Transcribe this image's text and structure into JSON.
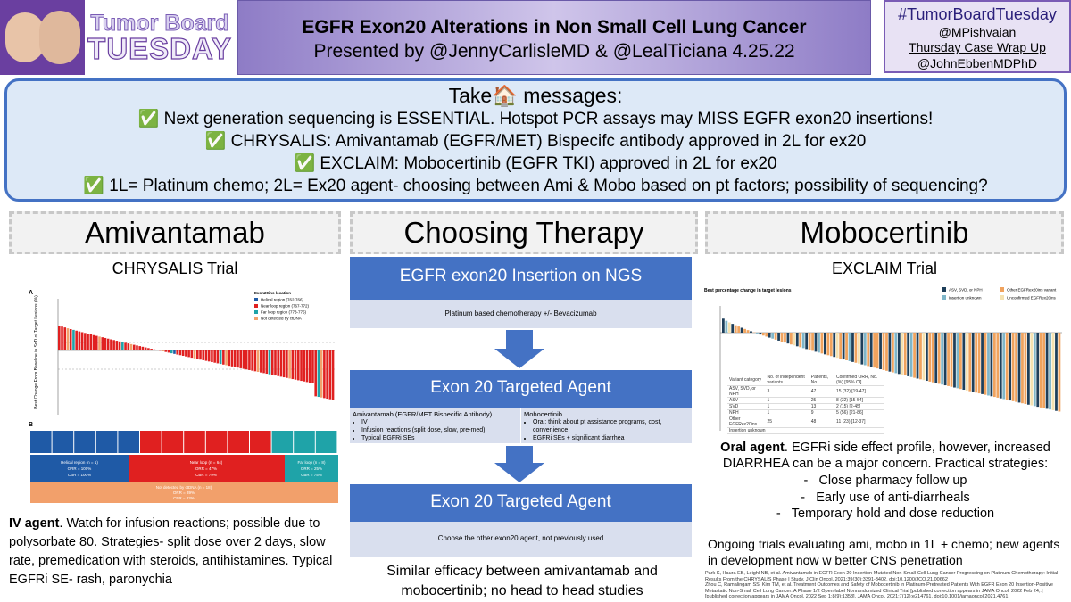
{
  "header": {
    "logo_line1": "Tumor Board",
    "logo_line2": "TUESDAY",
    "title": "EGFR Exon20 Alterations in Non Small Cell Lung Cancer",
    "subtitle": "Presented by @JennyCarlisleMD & @LealTiciana 4.25.22",
    "hashtag": "#TumorBoardTuesday",
    "handles": [
      "@MPishvaian",
      "Thursday Case Wrap Up",
      "@JohnEbbenMDPhD"
    ]
  },
  "take_home": {
    "heading": "Take🏠 messages:",
    "items": [
      "✅ Next generation sequencing is ESSENTIAL. Hotspot PCR assays may MISS EGFR exon20 insertions!",
      "✅ CHRYSALIS: Amivantamab (EGFR/MET) Bispecifc antibody approved in 2L for ex20",
      "✅ EXCLAIM: Mobocertinib (EGFR TKI) approved in 2L for ex20",
      "✅ 1L= Platinum chemo; 2L= Ex20 agent- choosing between Ami & Mobo based on pt factors; possibility of sequencing?"
    ]
  },
  "left": {
    "heading": "Amivantamab",
    "trial": "CHRYSALIS Trial",
    "figure": {
      "panel_a": "A",
      "panel_b": "B",
      "y_label": "Best Change From Baseline in SoD of Target Lesions (%)",
      "legend_title": "Exon20ins location",
      "legend": [
        "Helical region (762-766)",
        "Near loop region (767-772)",
        "Far loop region (773-775)",
        "Not detected by ctDNA"
      ],
      "regions": [
        [
          "Helical region (n = 1)",
          "ORR = 100%",
          "CBR = 100%"
        ],
        [
          "Near loop (n = 64)",
          "ORR = 47%",
          "CBR = 79%"
        ],
        [
          "Far loop (n = 8)",
          "ORR = 25%",
          "CBR = 75%"
        ],
        [
          "Not detected by ctDNA (n = 18)",
          "ORR = 39%",
          "CBR = 83%"
        ]
      ]
    },
    "note_bold": "IV agent",
    "note": ". Watch for infusion reactions; possible due to polysorbate 80. Strategies- split dose over 2 days, slow rate, premedication with steroids, antihistamines. Typical EGFRi SE- rash, paronychia"
  },
  "middle": {
    "heading": "Choosing Therapy",
    "step1": {
      "title": "EGFR exon20 Insertion on NGS",
      "detail": "Platinum based chemotherapy +/- Bevacizumab"
    },
    "step2": {
      "title": "Exon 20 Targeted Agent",
      "options": [
        {
          "name": "Amivantamab (EGFR/MET Bispecific Antibody)",
          "bullets": [
            "IV",
            "Infusion reactions (split dose, slow, pre-med)",
            "Typical EGFRi SEs"
          ]
        },
        {
          "name": "Mobocertinib",
          "bullets": [
            "Oral: think about pt assistance programs, cost, convenience",
            "EGFRi SEs + significant diarrhea"
          ]
        }
      ]
    },
    "step3": {
      "title": "Exon 20 Targeted Agent",
      "detail": "Choose the other exon20 agent, not previously used"
    },
    "note": "Similar efficacy between amivantamab and mobocertinib; no head to head studies"
  },
  "right": {
    "heading": "Mobocertinib",
    "trial": "EXCLAIM Trial",
    "figure": {
      "caption": "Best percentage change in target lesions",
      "legend": [
        "ASV, SVD, or NPH",
        "Other EGFRex20ins variant",
        "Insertion unknown",
        "Unconfirmed EGFRex20ins"
      ],
      "table_header": [
        "Variant category",
        "No. of independent variants",
        "Patients, No.",
        "Confirmed ORR, No. (%) [95% CI]"
      ],
      "table_rows": [
        [
          "ASV, SVD, or NPH",
          "3",
          "47",
          "15 (32) [19-47]"
        ],
        [
          "ASV",
          "1",
          "25",
          "8 (32) [15-54]"
        ],
        [
          "SVD",
          "1",
          "13",
          "2 (15) [2-45]"
        ],
        [
          "NPH",
          "1",
          "9",
          "5 (56) [21-86]"
        ],
        [
          "Other EGFRex20ins",
          "25",
          "48",
          "11 (23) [12-37]"
        ],
        [
          "Insertion unknown"
        ]
      ]
    },
    "note_bold": "Oral agent",
    "note": ". EGFRi side effect profile, however, increased DIARRHEA can be a major concern. Practical strategies:",
    "strategies": [
      "Close pharmacy follow up",
      "Early use of anti-diarrheals",
      "Temporary hold and dose reduction"
    ],
    "ongoing": "Ongoing trials evaluating ami, mobo in 1L + chemo; new agents in development now w better CNS penetration",
    "references": [
      "Park K, Haura EB, Leighl NB, et al. Amivantamab in EGFR Exon 20 Insertion-Mutated Non-Small-Cell Lung Cancer Progressing on Platinum Chemotherapy: Initial Results From the CHRYSALIS Phase I Study. J Clin Oncol. 2021;39(30):3391-3402. doi:10.1200/JCO.21.00662",
      "Zhou C, Ramalingam SS, Kim TM, et al. Treatment Outcomes and Safety of Mobocertinib in Platinum-Pretreated Patients With EGFR Exon 20 Insertion-Positive Metastatic Non-Small Cell Lung Cancer: A Phase 1/2 Open-label Nonrandomized Clinical Trial [published correction appears in JAMA Oncol. 2022 Feb 24;:] [published correction appears in JAMA Oncol. 2022 Sep 1;8(9):1358]. JAMA Oncol. 2021;7(12):e214761. doi:10.1001/jamaoncol.2021.4761"
    ]
  }
}
